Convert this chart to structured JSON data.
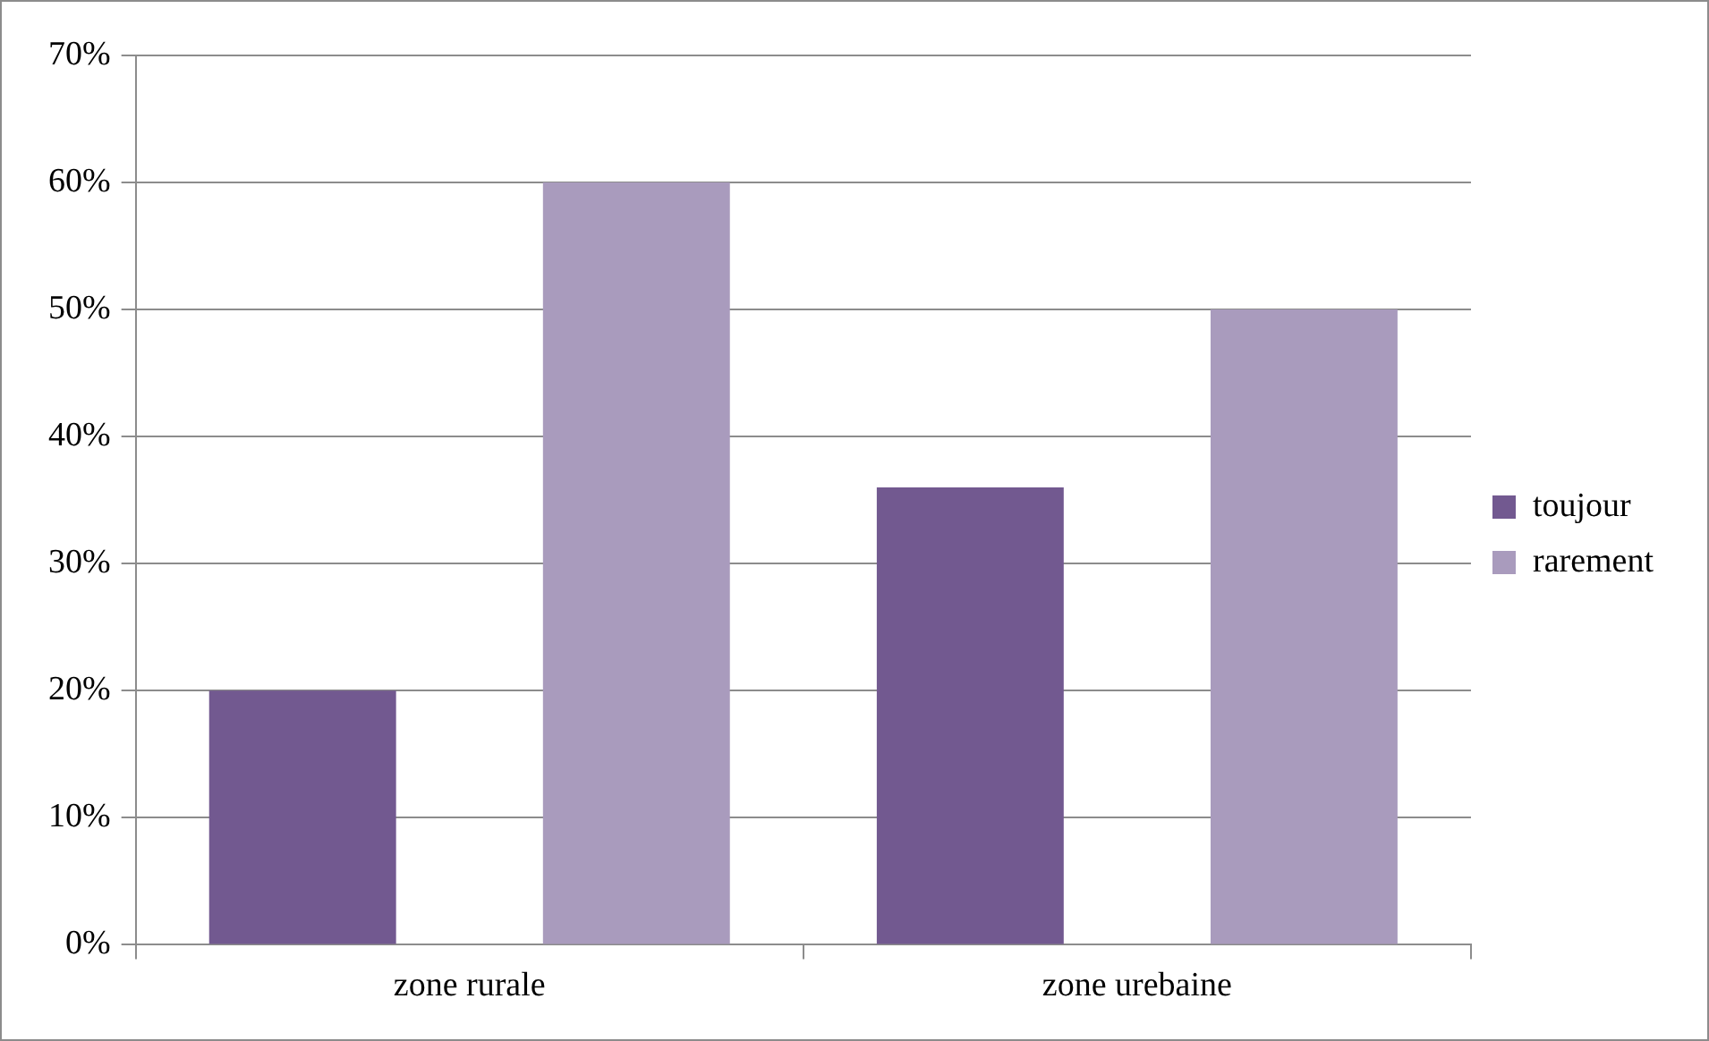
{
  "chart_data": {
    "type": "bar",
    "categories": [
      "zone rurale",
      "zone urebaine"
    ],
    "series": [
      {
        "name": "toujour",
        "color": "#725990",
        "values": [
          20,
          36
        ]
      },
      {
        "name": "rarement",
        "color": "#a99bbd",
        "values": [
          60,
          50
        ]
      }
    ],
    "ylim": [
      0,
      70
    ],
    "yticks": [
      {
        "value": 0,
        "label": "0%"
      },
      {
        "value": 10,
        "label": "10%"
      },
      {
        "value": 20,
        "label": "20%"
      },
      {
        "value": 30,
        "label": "30%"
      },
      {
        "value": 40,
        "label": "40%"
      },
      {
        "value": 50,
        "label": "50%"
      },
      {
        "value": 60,
        "label": "60%"
      },
      {
        "value": 70,
        "label": "70%"
      }
    ],
    "grid": "y",
    "legend": "right"
  }
}
